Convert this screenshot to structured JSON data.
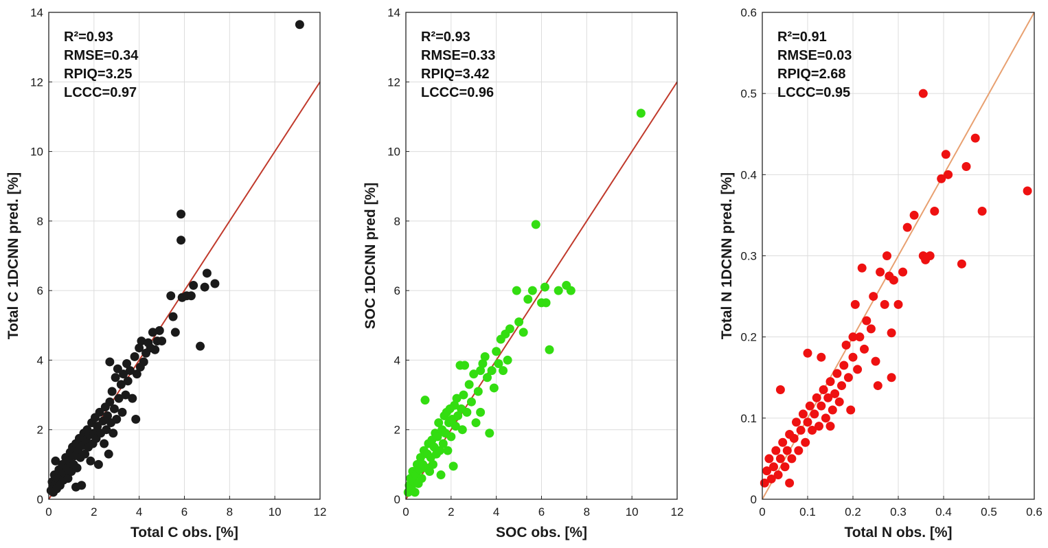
{
  "chart_data": [
    {
      "type": "scatter",
      "xlabel": "Total C obs. [%]",
      "ylabel": "Total C 1DCNN pred. [%]",
      "xlim": [
        0,
        12
      ],
      "ylim": [
        0,
        14
      ],
      "xticks": [
        "0",
        "2",
        "4",
        "6",
        "8",
        "10",
        "12"
      ],
      "yticks": [
        "0",
        "2",
        "4",
        "6",
        "8",
        "10",
        "12",
        "14"
      ],
      "marker_color": "#1a1a1a",
      "line_color": "#c0392b",
      "line": [
        [
          0,
          0
        ],
        [
          12,
          12
        ]
      ],
      "stats": [
        "R²=0.93",
        "RMSE=0.34",
        "RPIQ=3.25",
        "LCCC=0.97"
      ],
      "points": [
        [
          0.1,
          0.25
        ],
        [
          0.2,
          0.35
        ],
        [
          0.15,
          0.5
        ],
        [
          0.3,
          0.45
        ],
        [
          0.25,
          0.7
        ],
        [
          0.35,
          0.3
        ],
        [
          0.4,
          0.6
        ],
        [
          0.45,
          0.85
        ],
        [
          0.5,
          0.4
        ],
        [
          0.55,
          0.65
        ],
        [
          0.6,
          1.0
        ],
        [
          0.65,
          0.55
        ],
        [
          0.7,
          0.75
        ],
        [
          0.75,
          1.2
        ],
        [
          0.8,
          0.9
        ],
        [
          0.85,
          0.6
        ],
        [
          0.9,
          1.1
        ],
        [
          0.95,
          1.35
        ],
        [
          1.0,
          0.8
        ],
        [
          1.05,
          1.5
        ],
        [
          1.1,
          1.0
        ],
        [
          1.15,
          1.25
        ],
        [
          1.2,
          1.6
        ],
        [
          1.25,
          0.9
        ],
        [
          1.3,
          1.4
        ],
        [
          1.35,
          1.75
        ],
        [
          1.4,
          1.2
        ],
        [
          1.45,
          0.4
        ],
        [
          1.5,
          1.55
        ],
        [
          1.55,
          1.9
        ],
        [
          1.6,
          1.3
        ],
        [
          1.65,
          1.7
        ],
        [
          1.7,
          2.0
        ],
        [
          1.75,
          1.5
        ],
        [
          1.8,
          1.85
        ],
        [
          1.85,
          1.1
        ],
        [
          1.9,
          2.2
        ],
        [
          1.95,
          1.6
        ],
        [
          2.0,
          1.9
        ],
        [
          2.05,
          2.35
        ],
        [
          2.1,
          1.75
        ],
        [
          2.15,
          2.1
        ],
        [
          2.2,
          1.0
        ],
        [
          2.25,
          2.5
        ],
        [
          2.3,
          1.9
        ],
        [
          2.4,
          2.25
        ],
        [
          2.45,
          1.6
        ],
        [
          2.5,
          2.65
        ],
        [
          2.55,
          2.0
        ],
        [
          2.6,
          2.4
        ],
        [
          2.65,
          1.3
        ],
        [
          2.7,
          2.8
        ],
        [
          2.75,
          2.2
        ],
        [
          2.8,
          3.1
        ],
        [
          2.85,
          1.9
        ],
        [
          2.9,
          2.6
        ],
        [
          2.95,
          3.5
        ],
        [
          3.0,
          2.3
        ],
        [
          3.05,
          3.75
        ],
        [
          3.1,
          2.9
        ],
        [
          3.2,
          3.3
        ],
        [
          3.25,
          2.5
        ],
        [
          3.3,
          3.6
        ],
        [
          3.4,
          3.0
        ],
        [
          3.45,
          3.9
        ],
        [
          3.5,
          3.4
        ],
        [
          3.6,
          3.7
        ],
        [
          3.7,
          2.9
        ],
        [
          3.8,
          4.1
        ],
        [
          3.85,
          2.3
        ],
        [
          3.9,
          3.6
        ],
        [
          4.0,
          4.35
        ],
        [
          4.05,
          3.8
        ],
        [
          4.1,
          4.55
        ],
        [
          4.2,
          3.95
        ],
        [
          4.3,
          4.2
        ],
        [
          4.4,
          4.5
        ],
        [
          4.5,
          4.35
        ],
        [
          4.6,
          4.8
        ],
        [
          4.7,
          4.3
        ],
        [
          4.8,
          4.55
        ],
        [
          4.9,
          4.85
        ],
        [
          5.0,
          4.55
        ],
        [
          5.4,
          5.85
        ],
        [
          5.5,
          5.25
        ],
        [
          5.6,
          4.8
        ],
        [
          5.85,
          8.2
        ],
        [
          5.85,
          7.45
        ],
        [
          5.9,
          5.8
        ],
        [
          6.1,
          5.85
        ],
        [
          6.3,
          5.85
        ],
        [
          6.4,
          6.15
        ],
        [
          6.7,
          4.4
        ],
        [
          6.9,
          6.1
        ],
        [
          7.0,
          6.5
        ],
        [
          7.35,
          6.2
        ],
        [
          2.7,
          3.95
        ],
        [
          0.3,
          1.1
        ],
        [
          0.2,
          0.2
        ],
        [
          1.2,
          0.35
        ],
        [
          11.1,
          13.65
        ]
      ]
    },
    {
      "type": "scatter",
      "xlabel": "SOC obs. [%]",
      "ylabel": "SOC 1DCNN pred [%]",
      "xlim": [
        0,
        12
      ],
      "ylim": [
        0,
        14
      ],
      "xticks": [
        "0",
        "2",
        "4",
        "6",
        "8",
        "10",
        "12"
      ],
      "yticks": [
        "0",
        "2",
        "4",
        "6",
        "8",
        "10",
        "12",
        "14"
      ],
      "marker_color": "#33dd11",
      "line_color": "#c0392b",
      "line": [
        [
          0,
          0
        ],
        [
          12,
          12
        ]
      ],
      "stats": [
        "R²=0.93",
        "RMSE=0.33",
        "RPIQ=3.42",
        "LCCC=0.96"
      ],
      "points": [
        [
          0.1,
          0.2
        ],
        [
          0.15,
          0.4
        ],
        [
          0.2,
          0.6
        ],
        [
          0.25,
          0.3
        ],
        [
          0.3,
          0.8
        ],
        [
          0.35,
          0.5
        ],
        [
          0.4,
          0.2
        ],
        [
          0.45,
          0.7
        ],
        [
          0.5,
          1.0
        ],
        [
          0.55,
          0.45
        ],
        [
          0.6,
          0.85
        ],
        [
          0.65,
          1.2
        ],
        [
          0.7,
          0.6
        ],
        [
          0.75,
          1.0
        ],
        [
          0.8,
          1.4
        ],
        [
          0.85,
          2.85
        ],
        [
          0.9,
          0.9
        ],
        [
          0.95,
          1.3
        ],
        [
          1.0,
          1.6
        ],
        [
          1.05,
          0.8
        ],
        [
          1.1,
          1.2
        ],
        [
          1.15,
          1.7
        ],
        [
          1.2,
          1.0
        ],
        [
          1.25,
          1.5
        ],
        [
          1.3,
          1.9
        ],
        [
          1.35,
          1.3
        ],
        [
          1.4,
          1.8
        ],
        [
          1.45,
          2.2
        ],
        [
          1.5,
          1.4
        ],
        [
          1.55,
          0.7
        ],
        [
          1.6,
          2.0
        ],
        [
          1.65,
          1.6
        ],
        [
          1.7,
          2.4
        ],
        [
          1.75,
          1.9
        ],
        [
          1.8,
          2.5
        ],
        [
          1.85,
          1.4
        ],
        [
          1.9,
          2.2
        ],
        [
          1.95,
          2.6
        ],
        [
          2.0,
          1.8
        ],
        [
          2.05,
          2.3
        ],
        [
          2.1,
          0.95
        ],
        [
          2.15,
          2.7
        ],
        [
          2.2,
          2.1
        ],
        [
          2.25,
          2.9
        ],
        [
          2.3,
          2.4
        ],
        [
          2.4,
          3.85
        ],
        [
          2.45,
          2.6
        ],
        [
          2.5,
          2.0
        ],
        [
          2.55,
          3.0
        ],
        [
          2.6,
          3.85
        ],
        [
          2.7,
          2.5
        ],
        [
          2.8,
          3.3
        ],
        [
          2.9,
          2.8
        ],
        [
          3.0,
          3.6
        ],
        [
          3.1,
          2.2
        ],
        [
          3.2,
          3.1
        ],
        [
          3.3,
          2.5
        ],
        [
          3.4,
          3.9
        ],
        [
          3.5,
          4.1
        ],
        [
          3.6,
          3.5
        ],
        [
          3.7,
          1.9
        ],
        [
          3.8,
          3.7
        ],
        [
          3.9,
          3.2
        ],
        [
          4.0,
          4.25
        ],
        [
          4.1,
          3.9
        ],
        [
          4.2,
          4.6
        ],
        [
          4.3,
          3.7
        ],
        [
          4.4,
          4.75
        ],
        [
          4.5,
          4.0
        ],
        [
          4.6,
          4.9
        ],
        [
          4.9,
          6.0
        ],
        [
          5.0,
          5.1
        ],
        [
          5.2,
          4.8
        ],
        [
          5.4,
          5.75
        ],
        [
          5.6,
          6.0
        ],
        [
          5.75,
          7.9
        ],
        [
          6.0,
          5.65
        ],
        [
          6.15,
          6.1
        ],
        [
          6.2,
          5.65
        ],
        [
          6.35,
          4.3
        ],
        [
          6.75,
          6.0
        ],
        [
          7.1,
          6.15
        ],
        [
          7.3,
          6.0
        ],
        [
          3.3,
          3.7
        ],
        [
          10.4,
          11.1
        ]
      ]
    },
    {
      "type": "scatter",
      "xlabel": "Total N obs. [%]",
      "ylabel": "Total N 1DCNN pred. [%]",
      "xlim": [
        0,
        0.6
      ],
      "ylim": [
        0,
        0.6
      ],
      "xticks": [
        "0",
        "0.1",
        "0.2",
        "0.3",
        "0.4",
        "0.5",
        "0.6"
      ],
      "yticks": [
        "0",
        "0.1",
        "0.2",
        "0.3",
        "0.4",
        "0.5",
        "0.6"
      ],
      "marker_color": "#ee1111",
      "line_color": "#e8a070",
      "line": [
        [
          0,
          0
        ],
        [
          0.6,
          0.6
        ]
      ],
      "stats": [
        "R²=0.91",
        "RMSE=0.03",
        "RPIQ=2.68",
        "LCCC=0.95"
      ],
      "points": [
        [
          0.005,
          0.02
        ],
        [
          0.01,
          0.035
        ],
        [
          0.015,
          0.05
        ],
        [
          0.02,
          0.025
        ],
        [
          0.025,
          0.04
        ],
        [
          0.03,
          0.06
        ],
        [
          0.035,
          0.03
        ],
        [
          0.04,
          0.05
        ],
        [
          0.04,
          0.135
        ],
        [
          0.045,
          0.07
        ],
        [
          0.05,
          0.04
        ],
        [
          0.055,
          0.06
        ],
        [
          0.06,
          0.08
        ],
        [
          0.065,
          0.05
        ],
        [
          0.07,
          0.075
        ],
        [
          0.075,
          0.095
        ],
        [
          0.08,
          0.06
        ],
        [
          0.085,
          0.085
        ],
        [
          0.09,
          0.105
        ],
        [
          0.095,
          0.07
        ],
        [
          0.1,
          0.095
        ],
        [
          0.1,
          0.18
        ],
        [
          0.105,
          0.115
        ],
        [
          0.11,
          0.085
        ],
        [
          0.115,
          0.105
        ],
        [
          0.12,
          0.125
        ],
        [
          0.125,
          0.09
        ],
        [
          0.13,
          0.115
        ],
        [
          0.135,
          0.135
        ],
        [
          0.14,
          0.1
        ],
        [
          0.145,
          0.125
        ],
        [
          0.15,
          0.145
        ],
        [
          0.155,
          0.11
        ],
        [
          0.16,
          0.13
        ],
        [
          0.165,
          0.155
        ],
        [
          0.17,
          0.12
        ],
        [
          0.175,
          0.14
        ],
        [
          0.18,
          0.165
        ],
        [
          0.185,
          0.19
        ],
        [
          0.19,
          0.15
        ],
        [
          0.195,
          0.11
        ],
        [
          0.2,
          0.175
        ],
        [
          0.205,
          0.24
        ],
        [
          0.21,
          0.16
        ],
        [
          0.215,
          0.2
        ],
        [
          0.22,
          0.285
        ],
        [
          0.225,
          0.185
        ],
        [
          0.23,
          0.22
        ],
        [
          0.24,
          0.21
        ],
        [
          0.245,
          0.25
        ],
        [
          0.25,
          0.17
        ],
        [
          0.255,
          0.14
        ],
        [
          0.26,
          0.28
        ],
        [
          0.27,
          0.24
        ],
        [
          0.275,
          0.3
        ],
        [
          0.28,
          0.275
        ],
        [
          0.285,
          0.205
        ],
        [
          0.29,
          0.27
        ],
        [
          0.3,
          0.24
        ],
        [
          0.31,
          0.28
        ],
        [
          0.32,
          0.335
        ],
        [
          0.335,
          0.35
        ],
        [
          0.355,
          0.3
        ],
        [
          0.355,
          0.5
        ],
        [
          0.36,
          0.295
        ],
        [
          0.37,
          0.3
        ],
        [
          0.38,
          0.355
        ],
        [
          0.395,
          0.395
        ],
        [
          0.405,
          0.425
        ],
        [
          0.41,
          0.4
        ],
        [
          0.44,
          0.29
        ],
        [
          0.45,
          0.41
        ],
        [
          0.47,
          0.445
        ],
        [
          0.485,
          0.355
        ],
        [
          0.585,
          0.38
        ],
        [
          0.285,
          0.15
        ],
        [
          0.13,
          0.175
        ],
        [
          0.06,
          0.02
        ],
        [
          0.2,
          0.2
        ],
        [
          0.15,
          0.09
        ]
      ]
    }
  ]
}
